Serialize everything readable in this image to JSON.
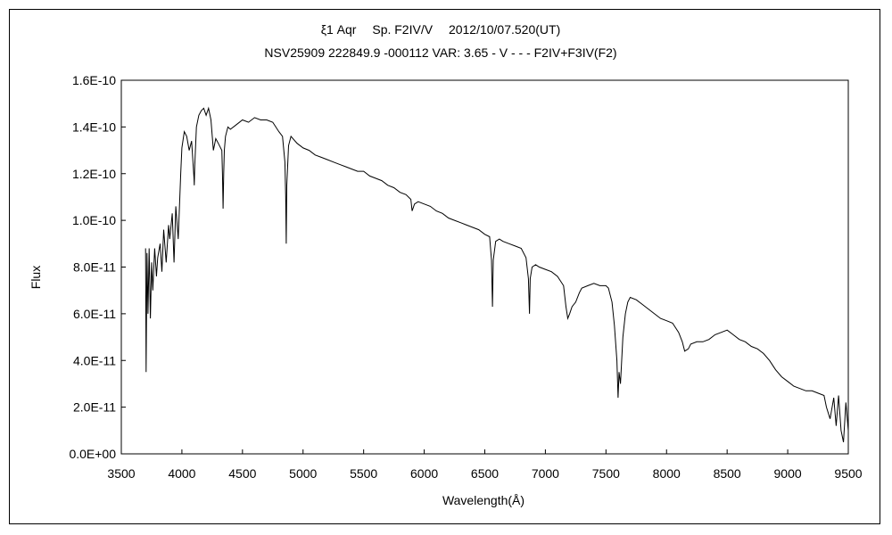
{
  "chart_data": {
    "type": "line",
    "title": "ξ1 Aqr　 Sp. F2IV/V　 2012/10/07.520(UT)",
    "subtitle": "NSV25909 222849.9 -000112 VAR: 3.65 - V - - - F2IV+F3IV(F2)",
    "xlabel": "Wavelength(Å)",
    "ylabel": "Flux",
    "xlim": [
      3500,
      9500
    ],
    "ylim": [
      0,
      1.6e-10
    ],
    "x_ticks": [
      "3500",
      "4000",
      "4500",
      "5000",
      "5500",
      "6000",
      "6500",
      "7000",
      "7500",
      "8000",
      "8500",
      "9000",
      "9500"
    ],
    "y_ticks": [
      "0.0E+00",
      "2.0E-11",
      "4.0E-11",
      "6.0E-11",
      "8.0E-11",
      "1.0E-10",
      "1.2E-10",
      "1.4E-10",
      "1.6E-10"
    ],
    "grid": false,
    "legend": "none",
    "series": [
      {
        "x": [
          3700,
          3705,
          3712,
          3720,
          3730,
          3740,
          3750,
          3760,
          3775,
          3790,
          3800,
          3820,
          3835,
          3850,
          3870,
          3890,
          3900,
          3920,
          3935,
          3950,
          3970,
          3990,
          4000,
          4020,
          4040,
          4060,
          4080,
          4100,
          4102,
          4106,
          4120,
          4140,
          4160,
          4180,
          4200,
          4220,
          4240,
          4260,
          4280,
          4300,
          4330,
          4335,
          4340,
          4345,
          4350,
          4360,
          4380,
          4400,
          4450,
          4500,
          4550,
          4600,
          4650,
          4700,
          4750,
          4800,
          4830,
          4850,
          4857,
          4861,
          4866,
          4880,
          4900,
          4950,
          5000,
          5050,
          5100,
          5150,
          5200,
          5250,
          5300,
          5350,
          5400,
          5450,
          5500,
          5550,
          5600,
          5650,
          5700,
          5750,
          5800,
          5850,
          5890,
          5900,
          5920,
          5950,
          6000,
          6050,
          6100,
          6150,
          6200,
          6250,
          6300,
          6350,
          6400,
          6450,
          6500,
          6540,
          6555,
          6563,
          6570,
          6590,
          6620,
          6650,
          6700,
          6750,
          6800,
          6840,
          6860,
          6869,
          6875,
          6890,
          6920,
          6950,
          7000,
          7050,
          7100,
          7150,
          7170,
          7185,
          7200,
          7220,
          7250,
          7280,
          7300,
          7350,
          7400,
          7450,
          7500,
          7520,
          7550,
          7570,
          7590,
          7600,
          7608,
          7620,
          7640,
          7660,
          7680,
          7700,
          7750,
          7800,
          7850,
          7900,
          7950,
          8000,
          8050,
          8100,
          8130,
          8150,
          8180,
          8200,
          8250,
          8300,
          8350,
          8400,
          8450,
          8500,
          8550,
          8600,
          8650,
          8700,
          8750,
          8800,
          8850,
          8900,
          8950,
          9000,
          9050,
          9100,
          9150,
          9200,
          9250,
          9300,
          9320,
          9350,
          9380,
          9400,
          9420,
          9440,
          9460,
          9480,
          9500
        ],
        "y": [
          8.8e-11,
          3.5e-11,
          8.6e-11,
          6e-11,
          8.8e-11,
          5.8e-11,
          8.2e-11,
          7e-11,
          8.8e-11,
          7.6e-11,
          8.4e-11,
          9e-11,
          7.8e-11,
          9.6e-11,
          8.2e-11,
          9.8e-11,
          9.2e-11,
          1.03e-10,
          8.2e-11,
          1.06e-10,
          9.2e-11,
          1.2e-10,
          1.31e-10,
          1.38e-10,
          1.36e-10,
          1.3e-10,
          1.34e-10,
          1.18e-10,
          1.15e-10,
          1.23e-10,
          1.4e-10,
          1.45e-10,
          1.47e-10,
          1.48e-10,
          1.45e-10,
          1.48e-10,
          1.43e-10,
          1.3e-10,
          1.35e-10,
          1.33e-10,
          1.3e-10,
          1.2e-10,
          1.05e-10,
          1.2e-10,
          1.3e-10,
          1.36e-10,
          1.4e-10,
          1.39e-10,
          1.41e-10,
          1.43e-10,
          1.42e-10,
          1.44e-10,
          1.43e-10,
          1.43e-10,
          1.42e-10,
          1.38e-10,
          1.36e-10,
          1.25e-10,
          1.1e-10,
          9e-11,
          1.15e-10,
          1.32e-10,
          1.36e-10,
          1.33e-10,
          1.31e-10,
          1.3e-10,
          1.28e-10,
          1.27e-10,
          1.26e-10,
          1.25e-10,
          1.24e-10,
          1.23e-10,
          1.22e-10,
          1.21e-10,
          1.21e-10,
          1.19e-10,
          1.18e-10,
          1.17e-10,
          1.15e-10,
          1.14e-10,
          1.12e-10,
          1.11e-10,
          1.09e-10,
          1.04e-10,
          1.07e-10,
          1.08e-10,
          1.07e-10,
          1.06e-10,
          1.04e-10,
          1.03e-10,
          1.01e-10,
          1e-10,
          9.9e-11,
          9.8e-11,
          9.7e-11,
          9.6e-11,
          9.4e-11,
          9.3e-11,
          8.3e-11,
          6.3e-11,
          8.3e-11,
          9.1e-11,
          9.2e-11,
          9.1e-11,
          9e-11,
          8.9e-11,
          8.8e-11,
          8.4e-11,
          7.5e-11,
          6e-11,
          7.5e-11,
          8e-11,
          8.1e-11,
          8e-11,
          7.9e-11,
          7.8e-11,
          7.6e-11,
          7.2e-11,
          6.3e-11,
          5.8e-11,
          6e-11,
          6.3e-11,
          6.5e-11,
          6.9e-11,
          7.1e-11,
          7.2e-11,
          7.3e-11,
          7.2e-11,
          7.2e-11,
          7.1e-11,
          6.5e-11,
          5.5e-11,
          4e-11,
          2.4e-11,
          3.5e-11,
          3e-11,
          5e-11,
          6e-11,
          6.5e-11,
          6.7e-11,
          6.6e-11,
          6.4e-11,
          6.2e-11,
          6e-11,
          5.8e-11,
          5.7e-11,
          5.6e-11,
          5.2e-11,
          4.8e-11,
          4.4e-11,
          4.5e-11,
          4.7e-11,
          4.8e-11,
          4.8e-11,
          4.9e-11,
          5.1e-11,
          5.2e-11,
          5.3e-11,
          5.1e-11,
          4.9e-11,
          4.8e-11,
          4.6e-11,
          4.5e-11,
          4.3e-11,
          4e-11,
          3.6e-11,
          3.3e-11,
          3.1e-11,
          2.9e-11,
          2.8e-11,
          2.7e-11,
          2.7e-11,
          2.6e-11,
          2.5e-11,
          2e-11,
          1.5e-11,
          2.4e-11,
          1.2e-11,
          2.5e-11,
          1e-11,
          5e-12,
          2.2e-11,
          1e-11
        ]
      }
    ]
  }
}
